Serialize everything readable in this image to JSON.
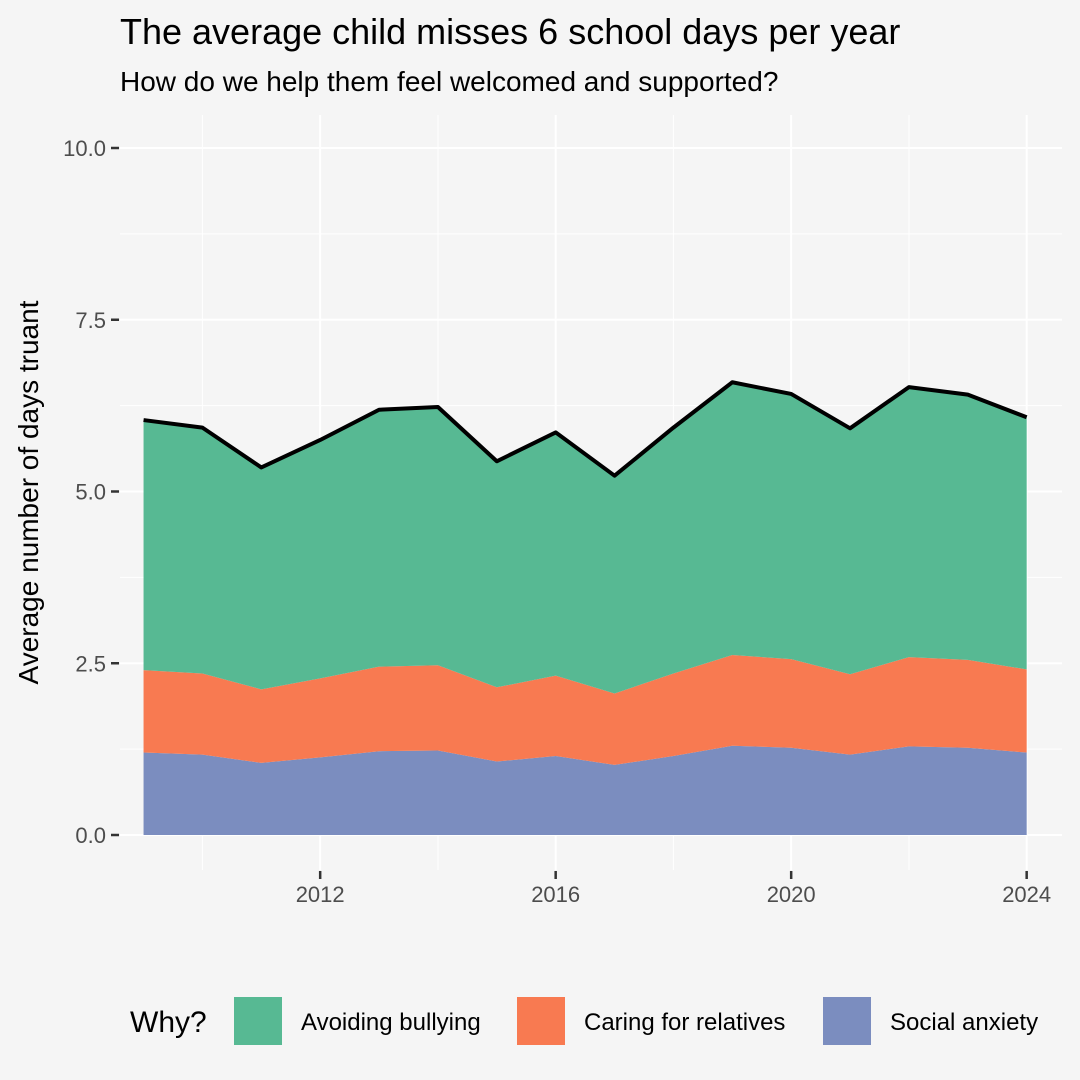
{
  "chart_data": {
    "type": "area",
    "stacked": true,
    "title": "The average child misses 6 school days per year",
    "subtitle": "How do we help them feel welcomed and supported?",
    "xlabel": "",
    "ylabel": "Average number of days truant",
    "x": [
      2009,
      2010,
      2011,
      2012,
      2013,
      2014,
      2015,
      2016,
      2017,
      2018,
      2019,
      2020,
      2021,
      2022,
      2023,
      2024
    ],
    "xlim": [
      2008.6,
      2024.6
    ],
    "ylim": [
      0,
      10
    ],
    "x_ticks": [
      "2012",
      "2016",
      "2020",
      "2024"
    ],
    "y_ticks": [
      "0.0",
      "2.5",
      "5.0",
      "7.5",
      "10.0"
    ],
    "grid": true,
    "legend": {
      "title": "Why?",
      "position": "bottom"
    },
    "series": [
      {
        "name": "Social anxiety",
        "color": "#7b8dbf",
        "values": [
          1.2,
          1.17,
          1.05,
          1.13,
          1.22,
          1.23,
          1.07,
          1.15,
          1.02,
          1.15,
          1.3,
          1.27,
          1.17,
          1.29,
          1.27,
          1.2
        ]
      },
      {
        "name": "Caring for relatives",
        "color": "#f87a51",
        "values": [
          1.2,
          1.18,
          1.07,
          1.15,
          1.23,
          1.24,
          1.08,
          1.17,
          1.04,
          1.2,
          1.32,
          1.29,
          1.17,
          1.3,
          1.28,
          1.21
        ]
      },
      {
        "name": "Avoiding bullying",
        "color": "#57b993",
        "values": [
          3.64,
          3.58,
          3.23,
          3.47,
          3.74,
          3.76,
          3.29,
          3.54,
          3.17,
          3.58,
          3.97,
          3.86,
          3.58,
          3.93,
          3.86,
          3.67
        ]
      }
    ],
    "total_line_color": "#000000"
  }
}
